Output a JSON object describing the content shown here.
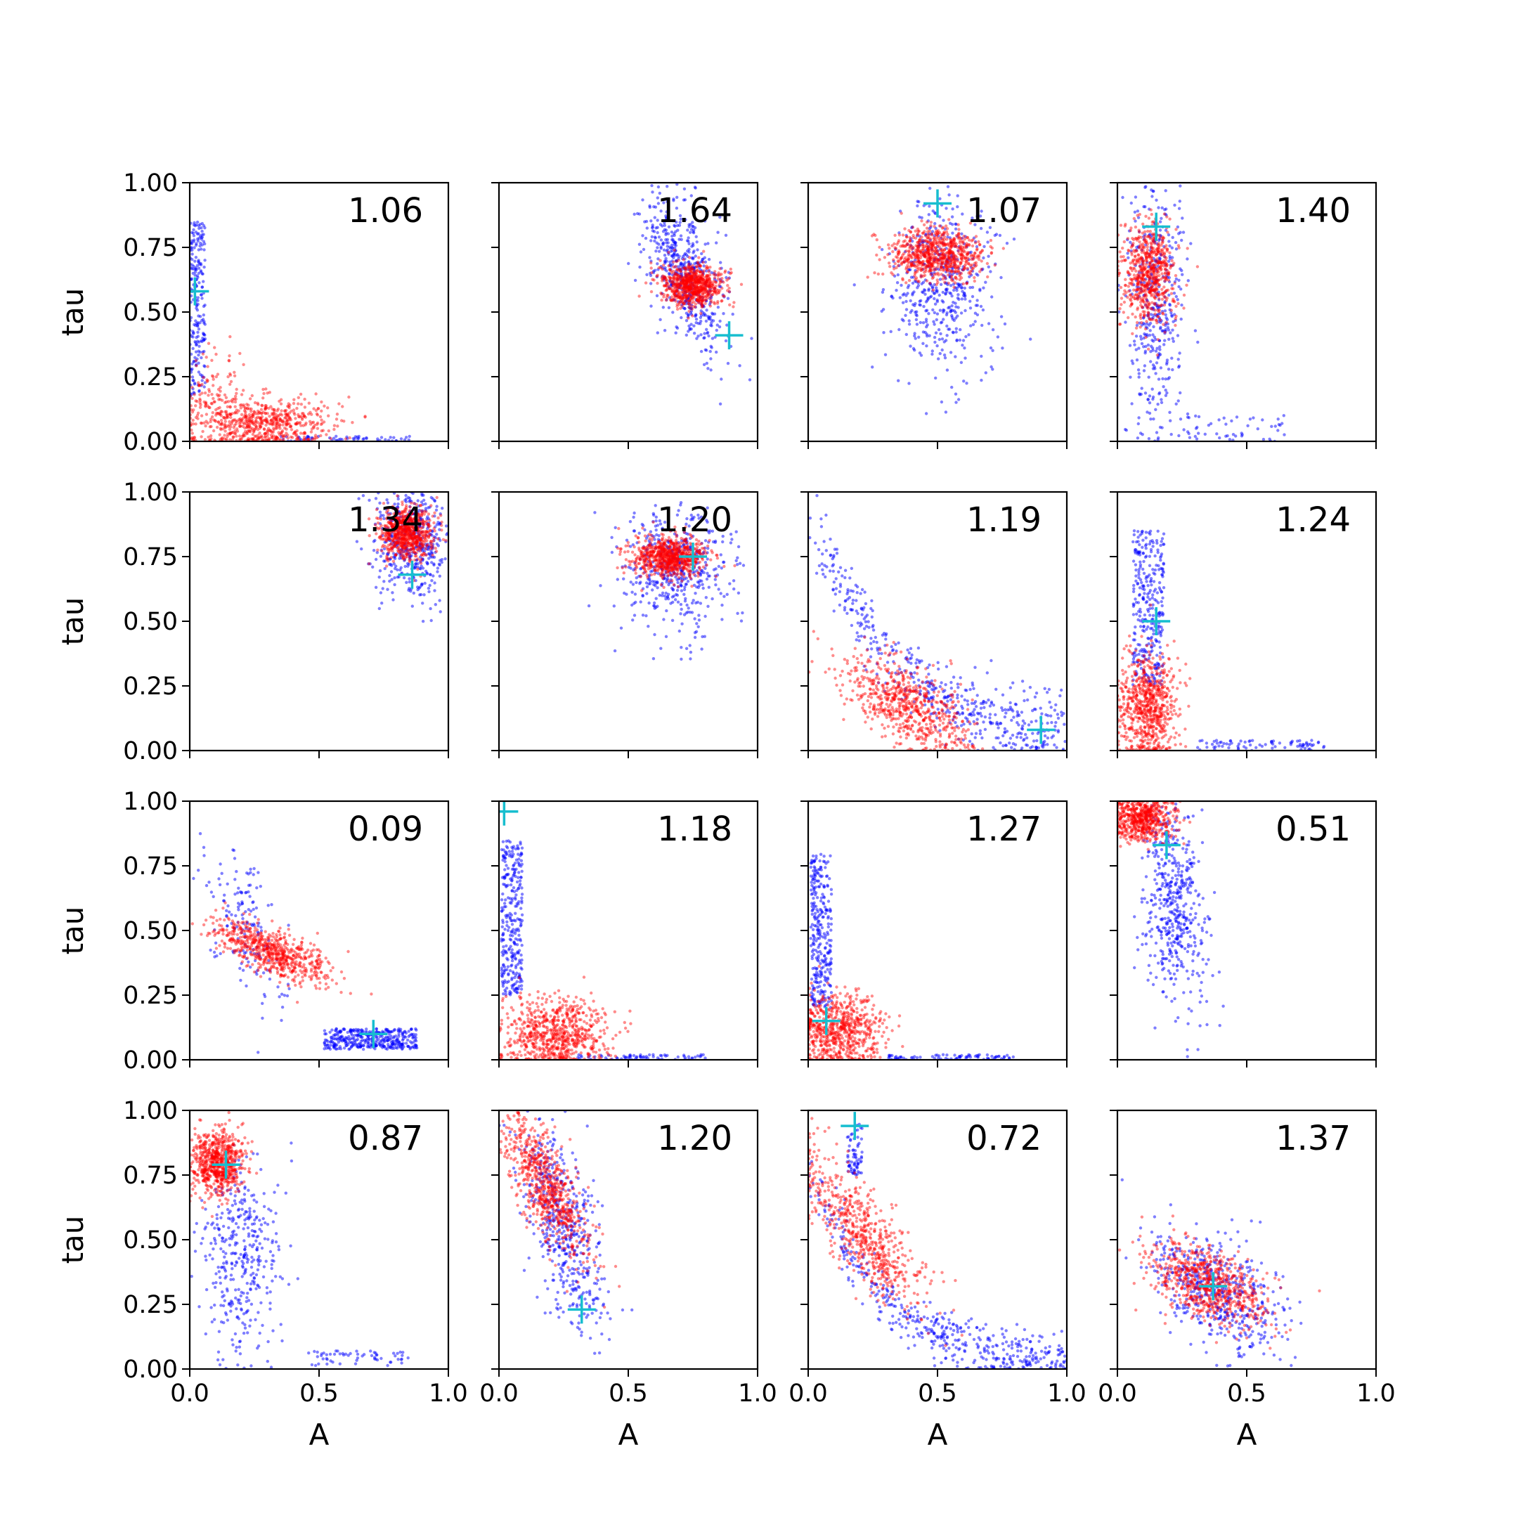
{
  "figure": {
    "rows": 4,
    "cols": 4
  },
  "colors": {
    "blue_samples": "#0000ff",
    "red_samples": "#ff0000",
    "marker": "#17becf",
    "axes": "#000000"
  },
  "axes": {
    "xlabel": "A",
    "ylabel": "tau",
    "xlim": [
      0,
      1
    ],
    "ylim": [
      0,
      1
    ],
    "x_ticks": [
      "0.0",
      "0.5",
      "1.0"
    ],
    "y_ticks": [
      "0.00",
      "0.25",
      "0.50",
      "0.75",
      "1.00"
    ]
  },
  "chart_data": [
    {
      "type": "scatter",
      "value_label": "1.06",
      "marker": {
        "x": 0.02,
        "y": 0.58
      },
      "clusters": [
        {
          "series": "blue",
          "shape": "strip",
          "x": 0.03,
          "y": 0.5,
          "sx": 0.03,
          "sy": 0.35,
          "n": 220
        },
        {
          "series": "blue",
          "shape": "strip",
          "x": 0.6,
          "y": 0.01,
          "sx": 0.25,
          "sy": 0.01,
          "n": 60
        },
        {
          "series": "red",
          "shape": "cloud",
          "x": 0.27,
          "y": 0.07,
          "sx": 0.14,
          "sy": 0.05,
          "rho": 0.0,
          "n": 650
        },
        {
          "series": "red",
          "shape": "cloud",
          "x": 0.08,
          "y": 0.2,
          "sx": 0.05,
          "sy": 0.1,
          "rho": 0.0,
          "n": 80
        }
      ]
    },
    {
      "type": "scatter",
      "value_label": "1.64",
      "marker": {
        "x": 0.89,
        "y": 0.41
      },
      "clusters": [
        {
          "series": "blue",
          "shape": "cloud",
          "x": 0.72,
          "y": 0.65,
          "sx": 0.08,
          "sy": 0.15,
          "rho": -0.5,
          "n": 550
        },
        {
          "series": "red",
          "shape": "cloud",
          "x": 0.75,
          "y": 0.6,
          "sx": 0.06,
          "sy": 0.04,
          "rho": 0.0,
          "n": 750
        }
      ]
    },
    {
      "type": "scatter",
      "value_label": "1.07",
      "marker": {
        "x": 0.5,
        "y": 0.92
      },
      "clusters": [
        {
          "series": "blue",
          "shape": "cloud",
          "x": 0.52,
          "y": 0.6,
          "sx": 0.1,
          "sy": 0.16,
          "rho": 0.0,
          "n": 500
        },
        {
          "series": "red",
          "shape": "cloud",
          "x": 0.5,
          "y": 0.72,
          "sx": 0.09,
          "sy": 0.05,
          "rho": 0.0,
          "n": 750
        }
      ]
    },
    {
      "type": "scatter",
      "value_label": "1.40",
      "marker": {
        "x": 0.15,
        "y": 0.83
      },
      "clusters": [
        {
          "series": "blue",
          "shape": "cloud",
          "x": 0.15,
          "y": 0.55,
          "sx": 0.06,
          "sy": 0.25,
          "rho": 0.0,
          "n": 420
        },
        {
          "series": "blue",
          "shape": "strip",
          "x": 0.45,
          "y": 0.05,
          "sx": 0.2,
          "sy": 0.05,
          "n": 50
        },
        {
          "series": "red",
          "shape": "cloud",
          "x": 0.12,
          "y": 0.65,
          "sx": 0.05,
          "sy": 0.1,
          "rho": 0.0,
          "n": 650
        }
      ]
    },
    {
      "type": "scatter",
      "value_label": "1.34",
      "marker": {
        "x": 0.86,
        "y": 0.68
      },
      "clusters": [
        {
          "series": "blue",
          "shape": "cloud",
          "x": 0.86,
          "y": 0.82,
          "sx": 0.07,
          "sy": 0.12,
          "rho": 0.0,
          "n": 500
        },
        {
          "series": "red",
          "shape": "cloud",
          "x": 0.84,
          "y": 0.84,
          "sx": 0.05,
          "sy": 0.05,
          "rho": 0.0,
          "n": 750
        }
      ]
    },
    {
      "type": "scatter",
      "value_label": "1.20",
      "marker": {
        "x": 0.75,
        "y": 0.75
      },
      "clusters": [
        {
          "series": "blue",
          "shape": "cloud",
          "x": 0.68,
          "y": 0.7,
          "sx": 0.1,
          "sy": 0.12,
          "rho": 0.0,
          "n": 480
        },
        {
          "series": "red",
          "shape": "cloud",
          "x": 0.66,
          "y": 0.75,
          "sx": 0.07,
          "sy": 0.04,
          "rho": 0.0,
          "n": 750
        }
      ]
    },
    {
      "type": "scatter",
      "value_label": "1.19",
      "marker": {
        "x": 0.9,
        "y": 0.08
      },
      "clusters": [
        {
          "series": "blue",
          "shape": "curve",
          "a": 0.02,
          "b": 0.9,
          "k": 3.0,
          "spread": 0.07,
          "n": 500
        },
        {
          "series": "red",
          "shape": "cloud",
          "x": 0.38,
          "y": 0.18,
          "sx": 0.12,
          "sy": 0.09,
          "rho": -0.6,
          "n": 650
        }
      ]
    },
    {
      "type": "scatter",
      "value_label": "1.24",
      "marker": {
        "x": 0.15,
        "y": 0.5
      },
      "clusters": [
        {
          "series": "blue",
          "shape": "strip",
          "x": 0.12,
          "y": 0.55,
          "sx": 0.06,
          "sy": 0.3,
          "n": 320
        },
        {
          "series": "blue",
          "shape": "strip",
          "x": 0.55,
          "y": 0.02,
          "sx": 0.25,
          "sy": 0.02,
          "n": 80
        },
        {
          "series": "red",
          "shape": "cloud",
          "x": 0.12,
          "y": 0.17,
          "sx": 0.06,
          "sy": 0.1,
          "rho": 0.0,
          "n": 700
        }
      ]
    },
    {
      "type": "scatter",
      "value_label": "0.09",
      "marker": {
        "x": 0.71,
        "y": 0.1
      },
      "clusters": [
        {
          "series": "blue",
          "shape": "strip",
          "x": 0.7,
          "y": 0.08,
          "sx": 0.18,
          "sy": 0.04,
          "n": 380
        },
        {
          "series": "blue",
          "shape": "cloud",
          "x": 0.22,
          "y": 0.5,
          "sx": 0.08,
          "sy": 0.15,
          "rho": -0.5,
          "n": 160
        },
        {
          "series": "red",
          "shape": "cloud",
          "x": 0.32,
          "y": 0.42,
          "sx": 0.11,
          "sy": 0.06,
          "rho": -0.7,
          "n": 650
        }
      ]
    },
    {
      "type": "scatter",
      "value_label": "1.18",
      "marker": {
        "x": 0.02,
        "y": 0.96
      },
      "clusters": [
        {
          "series": "blue",
          "shape": "strip",
          "x": 0.05,
          "y": 0.55,
          "sx": 0.04,
          "sy": 0.3,
          "n": 300
        },
        {
          "series": "blue",
          "shape": "strip",
          "x": 0.55,
          "y": 0.01,
          "sx": 0.25,
          "sy": 0.01,
          "n": 70
        },
        {
          "series": "red",
          "shape": "cloud",
          "x": 0.22,
          "y": 0.1,
          "sx": 0.1,
          "sy": 0.07,
          "rho": 0.0,
          "n": 700
        }
      ]
    },
    {
      "type": "scatter",
      "value_label": "1.27",
      "marker": {
        "x": 0.07,
        "y": 0.15
      },
      "clusters": [
        {
          "series": "blue",
          "shape": "strip",
          "x": 0.05,
          "y": 0.5,
          "sx": 0.04,
          "sy": 0.3,
          "n": 300
        },
        {
          "series": "blue",
          "shape": "strip",
          "x": 0.55,
          "y": 0.01,
          "sx": 0.25,
          "sy": 0.01,
          "n": 80
        },
        {
          "series": "red",
          "shape": "cloud",
          "x": 0.12,
          "y": 0.12,
          "sx": 0.08,
          "sy": 0.07,
          "rho": 0.0,
          "n": 650
        }
      ]
    },
    {
      "type": "scatter",
      "value_label": "0.51",
      "marker": {
        "x": 0.19,
        "y": 0.83
      },
      "clusters": [
        {
          "series": "blue",
          "shape": "cloud",
          "x": 0.22,
          "y": 0.6,
          "sx": 0.06,
          "sy": 0.2,
          "rho": -0.3,
          "n": 500
        },
        {
          "series": "red",
          "shape": "cloud",
          "x": 0.1,
          "y": 0.94,
          "sx": 0.06,
          "sy": 0.05,
          "rho": 0.0,
          "n": 650
        }
      ]
    },
    {
      "type": "scatter",
      "value_label": "0.87",
      "marker": {
        "x": 0.14,
        "y": 0.79
      },
      "clusters": [
        {
          "series": "blue",
          "shape": "cloud",
          "x": 0.2,
          "y": 0.45,
          "sx": 0.08,
          "sy": 0.2,
          "rho": 0.0,
          "n": 380
        },
        {
          "series": "blue",
          "shape": "strip",
          "x": 0.65,
          "y": 0.04,
          "sx": 0.2,
          "sy": 0.03,
          "n": 60
        },
        {
          "series": "red",
          "shape": "cloud",
          "x": 0.11,
          "y": 0.8,
          "sx": 0.05,
          "sy": 0.06,
          "rho": 0.0,
          "n": 700
        }
      ]
    },
    {
      "type": "scatter",
      "value_label": "1.20",
      "marker": {
        "x": 0.32,
        "y": 0.23
      },
      "clusters": [
        {
          "series": "blue",
          "shape": "cloud",
          "x": 0.25,
          "y": 0.55,
          "sx": 0.08,
          "sy": 0.2,
          "rho": -0.6,
          "n": 500
        },
        {
          "series": "red",
          "shape": "cloud",
          "x": 0.18,
          "y": 0.72,
          "sx": 0.08,
          "sy": 0.14,
          "rho": -0.7,
          "n": 700
        }
      ]
    },
    {
      "type": "scatter",
      "value_label": "0.72",
      "marker": {
        "x": 0.18,
        "y": 0.94
      },
      "clusters": [
        {
          "series": "blue",
          "shape": "curve",
          "a": 0.03,
          "b": 0.8,
          "k": 4.0,
          "spread": 0.05,
          "n": 450
        },
        {
          "series": "blue",
          "shape": "strip",
          "x": 0.18,
          "y": 0.85,
          "sx": 0.03,
          "sy": 0.1,
          "n": 70
        },
        {
          "series": "red",
          "shape": "cloud",
          "x": 0.22,
          "y": 0.52,
          "sx": 0.12,
          "sy": 0.15,
          "rho": -0.8,
          "n": 600
        }
      ]
    },
    {
      "type": "scatter",
      "value_label": "1.37",
      "marker": {
        "x": 0.37,
        "y": 0.32
      },
      "clusters": [
        {
          "series": "blue",
          "shape": "cloud",
          "x": 0.4,
          "y": 0.3,
          "sx": 0.13,
          "sy": 0.12,
          "rho": -0.5,
          "n": 520
        },
        {
          "series": "red",
          "shape": "cloud",
          "x": 0.35,
          "y": 0.33,
          "sx": 0.11,
          "sy": 0.08,
          "rho": -0.5,
          "n": 700
        }
      ]
    }
  ]
}
